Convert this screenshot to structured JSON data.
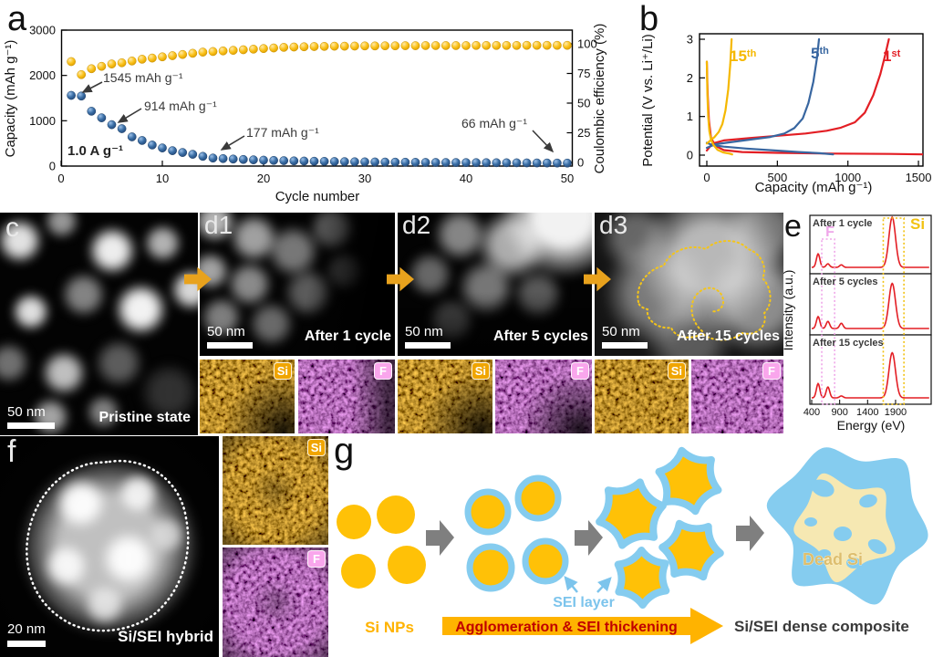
{
  "figure": {
    "panel_letters": {
      "a": "a",
      "b": "b",
      "c": "c",
      "d1": "d1",
      "d2": "d2",
      "d3": "d3",
      "e": "e",
      "f": "f",
      "g": "g"
    }
  },
  "colors": {
    "capacity_blue": "#3A6EA5",
    "efficiency_yellow": "#FBC31C",
    "red": "#E31E24",
    "blue": "#3866A0",
    "yellow": "#F5B800",
    "map_si_orange": "#E89E00",
    "map_f_pink": "#D77BD8",
    "badge_si": "#F0A500",
    "badge_f": "#F9A6EC",
    "sei_blue": "#85CCEF",
    "si_np_yellow": "#FFC107",
    "dead_si_fill": "#F6E8B2",
    "arrow_gray": "#7F7F7F",
    "arrow_orange": "#E8A21D",
    "banner_yellow": "#FFB300",
    "banner_text_red": "#C00000",
    "sei_label_blue": "#7CC4EC",
    "spectrum_red": "#E31E24",
    "highlight_f_pink": "#EFA6E9",
    "highlight_si_yellow": "#F2C212",
    "annotation_gray": "#3A3A3A",
    "composite_text": "#3A3A3A",
    "dead_si_text": "#DDBE6E"
  },
  "panel_a": {
    "xlabel": "Cycle number",
    "ylabel_left": "Capacity (mAh g⁻¹)",
    "ylabel_right": "Coulombic efficiency (%)",
    "rate_label": "1.0 A g⁻¹",
    "annotations": [
      {
        "text": "1545 mAh g⁻¹",
        "cycle": 2,
        "value_mAh_g": 1545
      },
      {
        "text": "914 mAh g⁻¹",
        "cycle": 5,
        "value_mAh_g": 914
      },
      {
        "text": "177 mAh g⁻¹",
        "cycle": 15,
        "value_mAh_g": 177
      },
      {
        "text": "66 mAh g⁻¹",
        "cycle": 50,
        "value_mAh_g": 66
      }
    ]
  },
  "panel_b": {
    "xlabel": "Capacity (mAh g⁻¹)",
    "ylabel": "Potential (V vs. Li⁺/Li)",
    "curve_labels": [
      {
        "num": "1",
        "suffix": "st"
      },
      {
        "num": "5",
        "suffix": "th"
      },
      {
        "num": "15",
        "suffix": "th"
      }
    ]
  },
  "panel_c": {
    "scale_bar": "50 nm",
    "caption": "Pristine state"
  },
  "panel_d1": {
    "scale_bar": "50 nm",
    "caption": "After 1 cycle",
    "badge_si": "Si",
    "badge_f": "F"
  },
  "panel_d2": {
    "scale_bar": "50 nm",
    "caption": "After 5 cycles",
    "badge_si": "Si",
    "badge_f": "F"
  },
  "panel_d3": {
    "scale_bar": "50 nm",
    "caption": "After 15 cycles",
    "badge_si": "Si",
    "badge_f": "F"
  },
  "panel_e": {
    "xlabel": "Energy (eV)",
    "ylabel": "Intensity (a.u.)",
    "f_label": "F",
    "si_label": "Si"
  },
  "panel_f": {
    "scale_bar": "20 nm",
    "caption": "Si/SEI hybrid",
    "badge_si": "Si",
    "badge_f": "F"
  },
  "panel_g": {
    "si_nps": "Si NPs",
    "sei_layer": "SEI layer",
    "banner": "Agglomeration & SEI thickening",
    "composite": "Si/SEI dense composite",
    "dead_si": "Dead Si"
  },
  "chart_data": [
    {
      "type": "scatter",
      "panel": "a",
      "xlabel": "Cycle number",
      "ylabel_left": "Capacity (mAh g⁻¹)",
      "ylabel_right": "Coulombic efficiency (%)",
      "xlim": [
        0,
        50
      ],
      "ylim_left": [
        0,
        3000
      ],
      "ylim_right": [
        0,
        100
      ],
      "xticks": [
        0,
        10,
        20,
        30,
        40,
        50
      ],
      "yticks_left": [
        0,
        1000,
        2000,
        3000
      ],
      "yticks_right": [
        0,
        25,
        50,
        75,
        100
      ],
      "x_cycles": [
        1,
        2,
        3,
        4,
        5,
        6,
        7,
        8,
        9,
        10,
        11,
        12,
        13,
        14,
        15,
        16,
        17,
        18,
        19,
        20,
        21,
        22,
        23,
        24,
        25,
        26,
        27,
        28,
        29,
        30,
        31,
        32,
        33,
        34,
        35,
        36,
        37,
        38,
        39,
        40,
        41,
        42,
        43,
        44,
        45,
        46,
        47,
        48,
        49,
        50
      ],
      "series": [
        {
          "name": "Charge capacity",
          "axis": "left",
          "color_key": "capacity_blue",
          "values": [
            1560,
            1545,
            1210,
            1065,
            914,
            825,
            645,
            565,
            465,
            400,
            340,
            300,
            260,
            215,
            177,
            165,
            155,
            146,
            138,
            131,
            125,
            120,
            115,
            111,
            107,
            104,
            101,
            98,
            95,
            93,
            91,
            89,
            87,
            85,
            83,
            81,
            80,
            79,
            78,
            77,
            76,
            75,
            74,
            73,
            72,
            70,
            69,
            68,
            67,
            66
          ]
        },
        {
          "name": "Coulombic efficiency",
          "axis": "right",
          "color_key": "efficiency_yellow",
          "values": [
            85,
            74,
            79,
            81,
            83,
            84,
            85.5,
            87,
            88,
            89,
            90,
            91,
            92,
            93,
            93.5,
            94,
            94.5,
            95,
            95.5,
            96,
            96.5,
            97,
            97.3,
            97.5,
            97.7,
            97.8,
            98,
            98,
            98.1,
            98.2,
            98.2,
            98.3,
            98.3,
            98.4,
            98.4,
            98.5,
            98.5,
            98.5,
            98.5,
            98.5,
            98.6,
            98.6,
            98.6,
            98.6,
            98.6,
            98.7,
            98.7,
            98.7,
            98.7,
            98.7
          ]
        }
      ]
    },
    {
      "type": "line",
      "panel": "b",
      "xlabel": "Capacity (mAh g⁻¹)",
      "ylabel": "Potential (V vs. Li⁺/Li)",
      "xlim": [
        0,
        1550
      ],
      "ylim": [
        0,
        3
      ],
      "xticks": [
        0,
        500,
        1000,
        1500
      ],
      "yticks": [
        0,
        1,
        2,
        3
      ],
      "series": [
        {
          "name": "1st",
          "color_key": "red",
          "charge": [
            [
              0,
              0.12
            ],
            [
              40,
              0.3
            ],
            [
              120,
              0.38
            ],
            [
              300,
              0.44
            ],
            [
              500,
              0.5
            ],
            [
              700,
              0.56
            ],
            [
              850,
              0.63
            ],
            [
              950,
              0.71
            ],
            [
              1050,
              0.85
            ],
            [
              1120,
              1.1
            ],
            [
              1180,
              1.55
            ],
            [
              1230,
              2.1
            ],
            [
              1265,
              2.6
            ],
            [
              1290,
              3.0
            ]
          ],
          "discharge": [
            [
              0,
              2.42
            ],
            [
              6,
              1.6
            ],
            [
              15,
              0.9
            ],
            [
              30,
              0.45
            ],
            [
              60,
              0.24
            ],
            [
              120,
              0.13
            ],
            [
              250,
              0.08
            ],
            [
              500,
              0.06
            ],
            [
              900,
              0.04
            ],
            [
              1300,
              0.03
            ],
            [
              1540,
              0.02
            ]
          ]
        },
        {
          "name": "5th",
          "color_key": "blue",
          "charge": [
            [
              0,
              0.19
            ],
            [
              60,
              0.28
            ],
            [
              160,
              0.33
            ],
            [
              300,
              0.4
            ],
            [
              450,
              0.47
            ],
            [
              550,
              0.56
            ],
            [
              620,
              0.7
            ],
            [
              680,
              0.95
            ],
            [
              720,
              1.35
            ],
            [
              755,
              1.9
            ],
            [
              780,
              2.5
            ],
            [
              795,
              3.0
            ]
          ],
          "discharge": [
            [
              0,
              0.32
            ],
            [
              40,
              0.26
            ],
            [
              120,
              0.22
            ],
            [
              280,
              0.17
            ],
            [
              480,
              0.12
            ],
            [
              650,
              0.08
            ],
            [
              800,
              0.05
            ],
            [
              895,
              0.02
            ]
          ]
        },
        {
          "name": "15th",
          "color_key": "yellow",
          "charge": [
            [
              0,
              0.3
            ],
            [
              25,
              0.38
            ],
            [
              55,
              0.47
            ],
            [
              85,
              0.6
            ],
            [
              110,
              0.8
            ],
            [
              132,
              1.15
            ],
            [
              152,
              1.7
            ],
            [
              166,
              2.35
            ],
            [
              176,
              3.0
            ]
          ],
          "discharge": [
            [
              0,
              2.42
            ],
            [
              4,
              1.6
            ],
            [
              10,
              1.0
            ],
            [
              18,
              0.62
            ],
            [
              30,
              0.4
            ],
            [
              48,
              0.26
            ],
            [
              75,
              0.14
            ],
            [
              115,
              0.07
            ],
            [
              160,
              0.04
            ],
            [
              180,
              0.02
            ]
          ]
        }
      ]
    },
    {
      "type": "line",
      "panel": "e",
      "xlabel": "Energy (eV)",
      "ylabel": "Intensity (a.u.)",
      "xticks": [
        400,
        900,
        1400,
        1900
      ],
      "subplots": [
        {
          "label": "After 1 cycle",
          "peaks": [
            {
              "energy": 515,
              "rel": 0.27
            },
            {
              "energy": 690,
              "rel": 0.07
            },
            {
              "energy": 930,
              "rel": 0.05
            },
            {
              "energy": 1840,
              "rel": 1.0
            }
          ]
        },
        {
          "label": "After 5 cycles",
          "peaks": [
            {
              "energy": 515,
              "rel": 0.25
            },
            {
              "energy": 690,
              "rel": 0.15
            },
            {
              "energy": 930,
              "rel": 0.11
            },
            {
              "energy": 1840,
              "rel": 0.95
            }
          ]
        },
        {
          "label": "After 15 cycles",
          "peaks": [
            {
              "energy": 515,
              "rel": 0.3
            },
            {
              "energy": 690,
              "rel": 0.23
            },
            {
              "energy": 930,
              "rel": 0.04
            },
            {
              "energy": 1840,
              "rel": 0.95
            }
          ]
        }
      ],
      "highlights": [
        {
          "label": "F",
          "range_eV": [
            580,
            810
          ],
          "color_key": "highlight_f_pink"
        },
        {
          "label": "Si",
          "range_eV": [
            1680,
            2050
          ],
          "color_key": "highlight_si_yellow"
        }
      ]
    }
  ]
}
